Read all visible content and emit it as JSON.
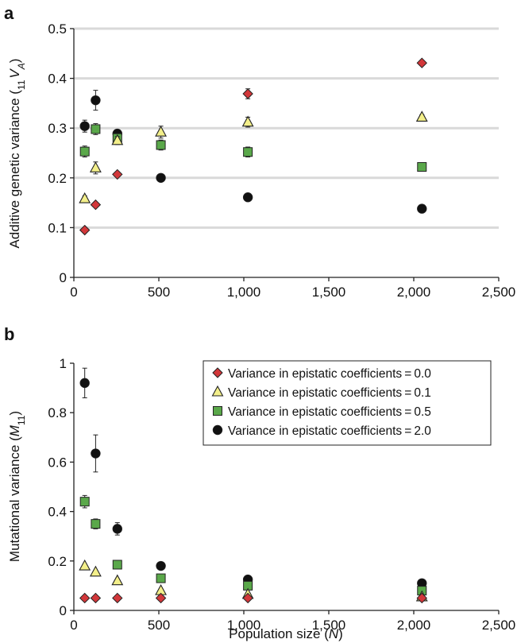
{
  "colors": {
    "v0": "#d2373a",
    "v01": "#f3ef8a",
    "v05": "#5aa84a",
    "v2": "#111111",
    "grid": "#d9d9d9"
  },
  "markers": {
    "v0": "diamond",
    "v01": "triangle",
    "v05": "square",
    "v2": "circle"
  },
  "legend": {
    "title": "",
    "entries": [
      "Variance in epistatic coefficients = 0.0",
      "Variance in epistatic coefficients = 0.1",
      "Variance in epistatic coefficients = 0.5",
      "Variance in epistatic coefficients = 2.0"
    ]
  },
  "chart_data": [
    {
      "panel": "a",
      "type": "scatter",
      "title": "",
      "ylabel_parts": [
        "Additive genetic variance (",
        "11",
        "V",
        "A",
        ")"
      ],
      "xlabel": "",
      "xlim": [
        0,
        2500
      ],
      "ylim": [
        0,
        0.5
      ],
      "xticks": [
        "0",
        "500",
        "1,000",
        "1,500",
        "2,000",
        "2,500"
      ],
      "yticks": [
        "0",
        "0.1",
        "0.2",
        "0.3",
        "0.4",
        "0.5"
      ],
      "grid": true,
      "series": [
        {
          "key": "v0",
          "x": [
            64,
            128,
            256,
            512,
            1024,
            2048
          ],
          "y": [
            0.095,
            0.146,
            0.207,
            null,
            0.369,
            0.431
          ],
          "err": [
            0.004,
            0.004,
            0.005,
            0,
            0.01,
            0.005
          ]
        },
        {
          "key": "v01",
          "x": [
            64,
            128,
            256,
            512,
            1024,
            2048
          ],
          "y": [
            0.158,
            0.22,
            0.275,
            0.292,
            0.312,
            0.322
          ],
          "err": [
            0.006,
            0.012,
            0.008,
            0.012,
            0.01,
            0.005
          ]
        },
        {
          "key": "v05",
          "x": [
            64,
            128,
            256,
            512,
            1024,
            2048
          ],
          "y": [
            0.253,
            0.298,
            0.28,
            0.266,
            0.252,
            0.222
          ],
          "err": [
            0.011,
            0.011,
            0.009,
            0.01,
            0.01,
            0.005
          ]
        },
        {
          "key": "v2",
          "x": [
            64,
            128,
            256,
            512,
            1024,
            2048
          ],
          "y": [
            0.304,
            0.356,
            0.289,
            0.2,
            0.161,
            0.138
          ],
          "err": [
            0.012,
            0.02,
            0.006,
            0.004,
            0.004,
            0.004
          ]
        }
      ]
    },
    {
      "panel": "b",
      "type": "scatter",
      "title": "",
      "ylabel_parts": [
        "Mutational variance (",
        "M",
        "11",
        ")"
      ],
      "xlabel_parts": [
        "Population size (",
        "N",
        ")"
      ],
      "xlim": [
        0,
        2500
      ],
      "ylim": [
        0,
        1
      ],
      "xticks": [
        "0",
        "500",
        "1,000",
        "1,500",
        "2,000",
        "2,500"
      ],
      "yticks": [
        "0",
        "0.2",
        "0.4",
        "0.6",
        "0.8",
        "1"
      ],
      "grid": false,
      "legend_position": "top-right",
      "series": [
        {
          "key": "v0",
          "x": [
            64,
            128,
            256,
            512,
            1024,
            2048
          ],
          "y": [
            0.05,
            0.05,
            0.05,
            0.05,
            0.05,
            0.05
          ],
          "err": [
            0,
            0,
            0,
            0,
            0,
            0
          ]
        },
        {
          "key": "v01",
          "x": [
            64,
            128,
            256,
            512,
            1024,
            2048
          ],
          "y": [
            0.18,
            0.155,
            0.12,
            0.08,
            0.065,
            0.055
          ],
          "err": [
            0.006,
            0.006,
            0.006,
            0.005,
            0.004,
            0.004
          ]
        },
        {
          "key": "v05",
          "x": [
            64,
            128,
            256,
            512,
            1024,
            2048
          ],
          "y": [
            0.44,
            0.35,
            0.185,
            0.13,
            0.1,
            0.08
          ],
          "err": [
            0.025,
            0.02,
            0.01,
            0.005,
            0.004,
            0.004
          ]
        },
        {
          "key": "v2",
          "x": [
            64,
            128,
            256,
            512,
            1024,
            2048
          ],
          "y": [
            0.92,
            0.635,
            0.33,
            0.18,
            0.125,
            0.11
          ],
          "err": [
            0.06,
            0.075,
            0.025,
            0.005,
            0.004,
            0.004
          ]
        }
      ]
    }
  ]
}
